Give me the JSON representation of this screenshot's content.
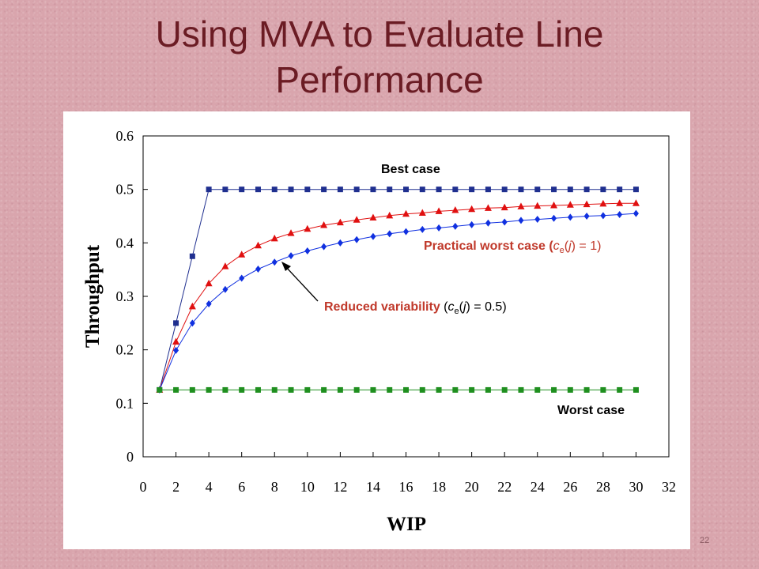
{
  "slide": {
    "title_line1": "Using MVA to Evaluate Line",
    "title_line2": "Performance",
    "page_number": "22"
  },
  "colors": {
    "title": "#6b1c24",
    "best": "#1f2f8f",
    "practical_worst": "#e01010",
    "reduced_variability": "#1030e0",
    "worst": "#1f8f1f",
    "annotation_red": "#c0392b"
  },
  "chart_data": {
    "type": "scatter",
    "title": "",
    "xlabel": "WIP",
    "ylabel": "Throughput",
    "xlim": [
      0,
      32
    ],
    "ylim": [
      0,
      0.6
    ],
    "xticks": [
      "0",
      "2",
      "4",
      "6",
      "8",
      "10",
      "12",
      "14",
      "16",
      "18",
      "20",
      "22",
      "24",
      "26",
      "28",
      "30",
      "32"
    ],
    "yticks": [
      "0",
      "0.1",
      "0.2",
      "0.3",
      "0.4",
      "0.5",
      "0.6"
    ],
    "grid": false,
    "x": [
      1,
      2,
      3,
      4,
      5,
      6,
      7,
      8,
      9,
      10,
      11,
      12,
      13,
      14,
      15,
      16,
      17,
      18,
      19,
      20,
      21,
      22,
      23,
      24,
      25,
      26,
      27,
      28,
      29,
      30
    ],
    "series": [
      {
        "key": "best",
        "marker": "square",
        "values": [
          0.125,
          0.25,
          0.375,
          0.5,
          0.5,
          0.5,
          0.5,
          0.5,
          0.5,
          0.5,
          0.5,
          0.5,
          0.5,
          0.5,
          0.5,
          0.5,
          0.5,
          0.5,
          0.5,
          0.5,
          0.5,
          0.5,
          0.5,
          0.5,
          0.5,
          0.5,
          0.5,
          0.5,
          0.5,
          0.5
        ]
      },
      {
        "key": "practical_worst",
        "marker": "triangle",
        "values": [
          0.125,
          0.215,
          0.281,
          0.324,
          0.356,
          0.378,
          0.395,
          0.408,
          0.418,
          0.426,
          0.433,
          0.438,
          0.443,
          0.447,
          0.451,
          0.454,
          0.456,
          0.459,
          0.461,
          0.463,
          0.465,
          0.466,
          0.468,
          0.469,
          0.47,
          0.471,
          0.472,
          0.473,
          0.474,
          0.474
        ]
      },
      {
        "key": "reduced_variability",
        "marker": "diamond",
        "values": [
          0.125,
          0.199,
          0.25,
          0.286,
          0.313,
          0.334,
          0.351,
          0.364,
          0.376,
          0.385,
          0.393,
          0.4,
          0.406,
          0.412,
          0.417,
          0.421,
          0.425,
          0.428,
          0.431,
          0.434,
          0.437,
          0.439,
          0.442,
          0.444,
          0.446,
          0.448,
          0.45,
          0.451,
          0.453,
          0.455
        ]
      },
      {
        "key": "worst",
        "marker": "square",
        "values": [
          0.125,
          0.125,
          0.125,
          0.125,
          0.125,
          0.125,
          0.125,
          0.125,
          0.125,
          0.125,
          0.125,
          0.125,
          0.125,
          0.125,
          0.125,
          0.125,
          0.125,
          0.125,
          0.125,
          0.125,
          0.125,
          0.125,
          0.125,
          0.125,
          0.125,
          0.125,
          0.125,
          0.125,
          0.125,
          0.125
        ]
      }
    ],
    "annotations": {
      "best_case": "Best case",
      "practical_worst_case": {
        "prefix": "Practical worst case (",
        "c": "c",
        "sub": "e",
        "mid": "(",
        "j": "j",
        "suffix": ") = 1)"
      },
      "reduced_variability": {
        "bold": "Reduced variability",
        "prefix": " (",
        "c": "c",
        "sub": "e",
        "mid": "(",
        "j": "j",
        "suffix": ") = 0.5)"
      },
      "worst_case": "Worst case"
    }
  }
}
